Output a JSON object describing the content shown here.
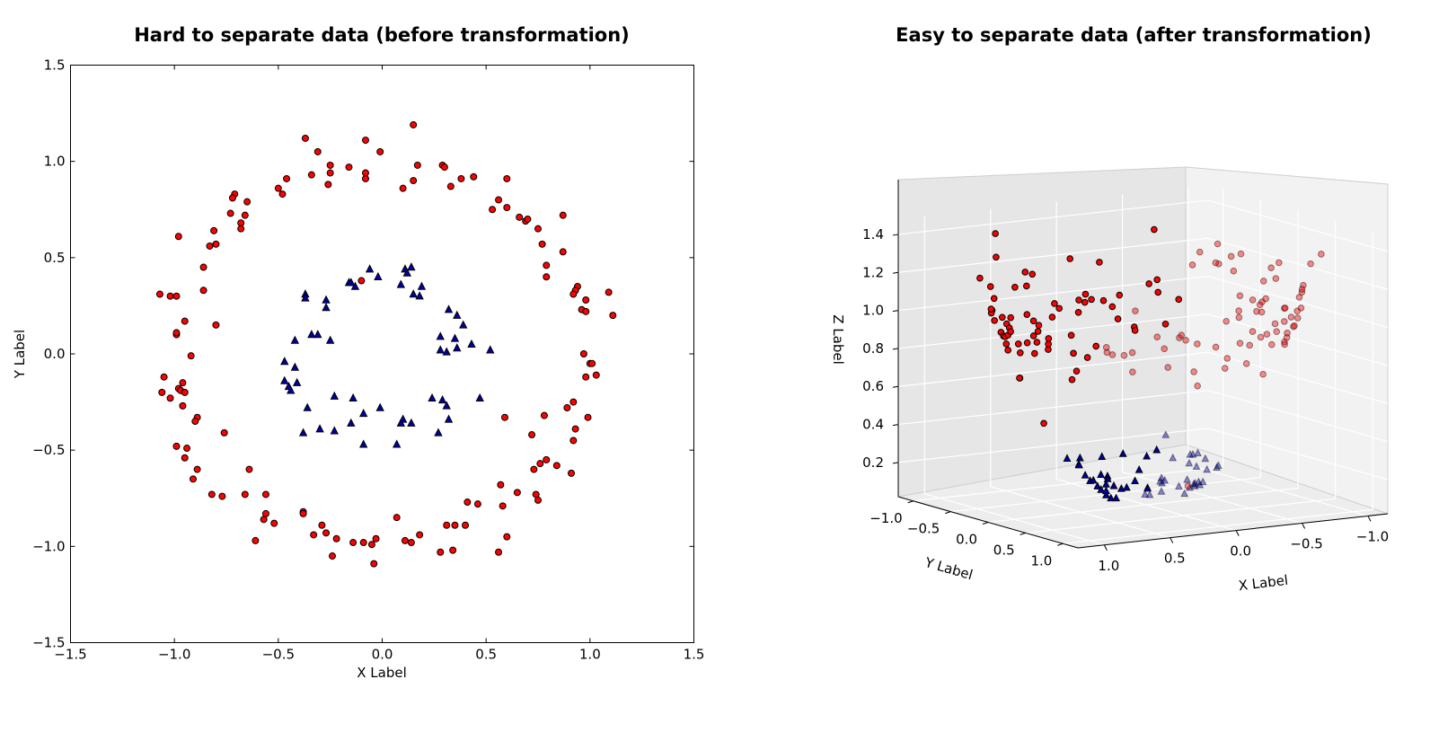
{
  "chart_data": [
    {
      "type": "scatter",
      "title": "Hard to separate data (before transformation)",
      "xlabel": "X Label",
      "ylabel": "Y Label",
      "xlim": [
        -1.5,
        1.5
      ],
      "ylim": [
        -1.5,
        1.5
      ],
      "xticks": [
        -1.5,
        -1.0,
        -0.5,
        0.0,
        0.5,
        1.0,
        1.5
      ],
      "yticks": [
        -1.5,
        -1.0,
        -0.5,
        0.0,
        0.5,
        1.0,
        1.5
      ],
      "xtick_labels": [
        "−1.5",
        "−1.0",
        "−0.5",
        "0.0",
        "0.5",
        "1.0",
        "1.5"
      ],
      "ytick_labels": [
        "−1.5",
        "−1.0",
        "−0.5",
        "0.0",
        "0.5",
        "1.0",
        "1.5"
      ],
      "grid": false,
      "series": [
        {
          "marker": "circle",
          "color": "#ff0000",
          "points": [
            [
              0.15,
              1.19
            ],
            [
              -0.37,
              1.12
            ],
            [
              -0.08,
              1.11
            ],
            [
              -0.01,
              1.05
            ],
            [
              -0.31,
              1.05
            ],
            [
              -0.25,
              0.98
            ],
            [
              -0.16,
              0.97
            ],
            [
              -0.08,
              0.94
            ],
            [
              0.17,
              0.98
            ],
            [
              0.29,
              0.98
            ],
            [
              0.3,
              0.97
            ],
            [
              -0.25,
              0.94
            ],
            [
              -0.34,
              0.93
            ],
            [
              -0.46,
              0.91
            ],
            [
              -0.08,
              0.91
            ],
            [
              0.44,
              0.92
            ],
            [
              0.38,
              0.91
            ],
            [
              0.15,
              0.9
            ],
            [
              0.6,
              0.91
            ],
            [
              0.33,
              0.87
            ],
            [
              0.1,
              0.86
            ],
            [
              -0.5,
              0.86
            ],
            [
              -0.26,
              0.88
            ],
            [
              -0.48,
              0.83
            ],
            [
              -0.71,
              0.83
            ],
            [
              -0.72,
              0.81
            ],
            [
              -0.65,
              0.79
            ],
            [
              0.56,
              0.8
            ],
            [
              0.6,
              0.76
            ],
            [
              0.53,
              0.75
            ],
            [
              -0.73,
              0.73
            ],
            [
              -0.66,
              0.72
            ],
            [
              0.87,
              0.72
            ],
            [
              0.66,
              0.71
            ],
            [
              0.69,
              0.69
            ],
            [
              0.7,
              0.7
            ],
            [
              -0.68,
              0.68
            ],
            [
              -0.68,
              0.65
            ],
            [
              0.75,
              0.65
            ],
            [
              -0.81,
              0.64
            ],
            [
              -0.98,
              0.61
            ],
            [
              -0.8,
              0.57
            ],
            [
              -0.83,
              0.56
            ],
            [
              0.77,
              0.57
            ],
            [
              0.87,
              0.53
            ],
            [
              0.79,
              0.46
            ],
            [
              -0.86,
              0.45
            ],
            [
              0.79,
              0.4
            ],
            [
              -0.1,
              0.38
            ],
            [
              0.94,
              0.35
            ],
            [
              -0.86,
              0.33
            ],
            [
              0.93,
              0.33
            ],
            [
              -1.07,
              0.31
            ],
            [
              -1.02,
              0.3
            ],
            [
              -0.99,
              0.3
            ],
            [
              1.09,
              0.32
            ],
            [
              0.92,
              0.31
            ],
            [
              0.98,
              0.28
            ],
            [
              0.96,
              0.23
            ],
            [
              0.98,
              0.22
            ],
            [
              1.11,
              0.2
            ],
            [
              -0.95,
              0.17
            ],
            [
              -0.8,
              0.15
            ],
            [
              -0.99,
              0.1
            ],
            [
              -0.99,
              0.11
            ],
            [
              -0.92,
              -0.01
            ],
            [
              0.97,
              0.0
            ],
            [
              1.0,
              -0.05
            ],
            [
              1.01,
              -0.05
            ],
            [
              1.03,
              -0.11
            ],
            [
              -1.05,
              -0.12
            ],
            [
              0.98,
              -0.12
            ],
            [
              -0.96,
              -0.15
            ],
            [
              -0.98,
              -0.18
            ],
            [
              -1.06,
              -0.2
            ],
            [
              -0.97,
              -0.19
            ],
            [
              -0.95,
              -0.2
            ],
            [
              -1.02,
              -0.23
            ],
            [
              -0.96,
              -0.27
            ],
            [
              0.92,
              -0.25
            ],
            [
              0.89,
              -0.28
            ],
            [
              0.78,
              -0.32
            ],
            [
              0.99,
              -0.33
            ],
            [
              0.59,
              -0.33
            ],
            [
              -0.89,
              -0.33
            ],
            [
              -0.9,
              -0.35
            ],
            [
              0.93,
              -0.39
            ],
            [
              -0.76,
              -0.41
            ],
            [
              0.72,
              -0.42
            ],
            [
              0.92,
              -0.45
            ],
            [
              -0.99,
              -0.48
            ],
            [
              -0.94,
              -0.49
            ],
            [
              -0.95,
              -0.54
            ],
            [
              0.79,
              -0.55
            ],
            [
              0.76,
              -0.57
            ],
            [
              0.84,
              -0.58
            ],
            [
              -0.89,
              -0.6
            ],
            [
              0.73,
              -0.6
            ],
            [
              -0.64,
              -0.6
            ],
            [
              0.91,
              -0.62
            ],
            [
              -0.91,
              -0.65
            ],
            [
              0.57,
              -0.68
            ],
            [
              -0.82,
              -0.73
            ],
            [
              -0.77,
              -0.74
            ],
            [
              -0.66,
              -0.73
            ],
            [
              -0.56,
              -0.73
            ],
            [
              0.65,
              -0.72
            ],
            [
              0.74,
              -0.73
            ],
            [
              0.75,
              -0.76
            ],
            [
              0.41,
              -0.77
            ],
            [
              0.46,
              -0.78
            ],
            [
              0.58,
              -0.79
            ],
            [
              -0.38,
              -0.82
            ],
            [
              -0.56,
              -0.83
            ],
            [
              -0.38,
              -0.83
            ],
            [
              -0.57,
              -0.86
            ],
            [
              0.07,
              -0.85
            ],
            [
              -0.52,
              -0.88
            ],
            [
              -0.29,
              -0.89
            ],
            [
              0.31,
              -0.89
            ],
            [
              0.35,
              -0.89
            ],
            [
              0.4,
              -0.89
            ],
            [
              -0.27,
              -0.93
            ],
            [
              -0.33,
              -0.94
            ],
            [
              0.18,
              -0.94
            ],
            [
              -0.22,
              -0.96
            ],
            [
              -0.61,
              -0.97
            ],
            [
              0.6,
              -0.95
            ],
            [
              -0.03,
              -0.96
            ],
            [
              0.11,
              -0.97
            ],
            [
              0.14,
              -0.98
            ],
            [
              -0.14,
              -0.98
            ],
            [
              -0.09,
              -0.98
            ],
            [
              -0.05,
              -0.99
            ],
            [
              0.28,
              -1.03
            ],
            [
              0.34,
              -1.02
            ],
            [
              0.56,
              -1.03
            ],
            [
              -0.24,
              -1.05
            ],
            [
              -0.04,
              -1.09
            ]
          ]
        },
        {
          "marker": "triangle",
          "color": "#0000aa",
          "points": [
            [
              -0.06,
              0.44
            ],
            [
              0.11,
              0.44
            ],
            [
              0.14,
              0.45
            ],
            [
              0.12,
              0.42
            ],
            [
              -0.02,
              0.4
            ],
            [
              -0.16,
              0.37
            ],
            [
              -0.15,
              0.37
            ],
            [
              0.09,
              0.36
            ],
            [
              0.19,
              0.35
            ],
            [
              -0.13,
              0.35
            ],
            [
              -0.37,
              0.31
            ],
            [
              0.15,
              0.31
            ],
            [
              0.18,
              0.3
            ],
            [
              -0.37,
              0.29
            ],
            [
              -0.27,
              0.28
            ],
            [
              -0.27,
              0.24
            ],
            [
              0.32,
              0.23
            ],
            [
              0.36,
              0.2
            ],
            [
              0.39,
              0.15
            ],
            [
              -0.34,
              0.1
            ],
            [
              -0.31,
              0.1
            ],
            [
              0.28,
              0.09
            ],
            [
              0.35,
              0.08
            ],
            [
              -0.42,
              0.07
            ],
            [
              -0.25,
              0.07
            ],
            [
              0.43,
              0.05
            ],
            [
              0.36,
              0.03
            ],
            [
              0.28,
              0.02
            ],
            [
              0.52,
              0.02
            ],
            [
              0.31,
              0.01
            ],
            [
              -0.47,
              -0.04
            ],
            [
              -0.42,
              -0.07
            ],
            [
              -0.47,
              -0.14
            ],
            [
              -0.45,
              -0.17
            ],
            [
              -0.41,
              -0.15
            ],
            [
              -0.44,
              -0.19
            ],
            [
              -0.23,
              -0.22
            ],
            [
              -0.14,
              -0.23
            ],
            [
              -0.01,
              -0.28
            ],
            [
              0.24,
              -0.23
            ],
            [
              0.47,
              -0.23
            ],
            [
              0.29,
              -0.24
            ],
            [
              0.31,
              -0.27
            ],
            [
              -0.36,
              -0.28
            ],
            [
              -0.09,
              -0.31
            ],
            [
              0.1,
              -0.34
            ],
            [
              0.09,
              -0.36
            ],
            [
              0.14,
              -0.36
            ],
            [
              0.32,
              -0.34
            ],
            [
              -0.15,
              -0.36
            ],
            [
              -0.3,
              -0.39
            ],
            [
              -0.23,
              -0.4
            ],
            [
              -0.38,
              -0.41
            ],
            [
              0.27,
              -0.41
            ],
            [
              -0.09,
              -0.47
            ],
            [
              0.07,
              -0.47
            ]
          ]
        }
      ]
    },
    {
      "type": "scatter",
      "title": "Easy to separate data (after transformation)",
      "xlabel": "X Label",
      "ylabel": "Y Label",
      "zlabel": "Z Label",
      "projection": "3d",
      "x_tick_labels": [
        "1.0",
        "0.5",
        "0.0",
        "−0.5",
        "−1.0"
      ],
      "y_tick_labels": [
        "−1.0",
        "−0.5",
        "0.0",
        "0.5",
        "1.0"
      ],
      "z_tick_labels": [
        "0.2",
        "0.4",
        "0.6",
        "0.8",
        "1.0",
        "1.2",
        "1.4"
      ],
      "z_ticks": [
        0.2,
        0.4,
        0.6,
        0.8,
        1.0,
        1.2,
        1.4
      ],
      "x_ticks": [
        1.0,
        0.5,
        0.0,
        -0.5,
        -1.0
      ],
      "y_ticks": [
        -1.0,
        -0.5,
        0.0,
        0.5,
        1.0
      ],
      "xlim": [
        -1.15,
        1.2
      ],
      "ylim": [
        -1.2,
        1.2
      ],
      "zlim": [
        0.02,
        1.48
      ],
      "grid": true
    }
  ]
}
